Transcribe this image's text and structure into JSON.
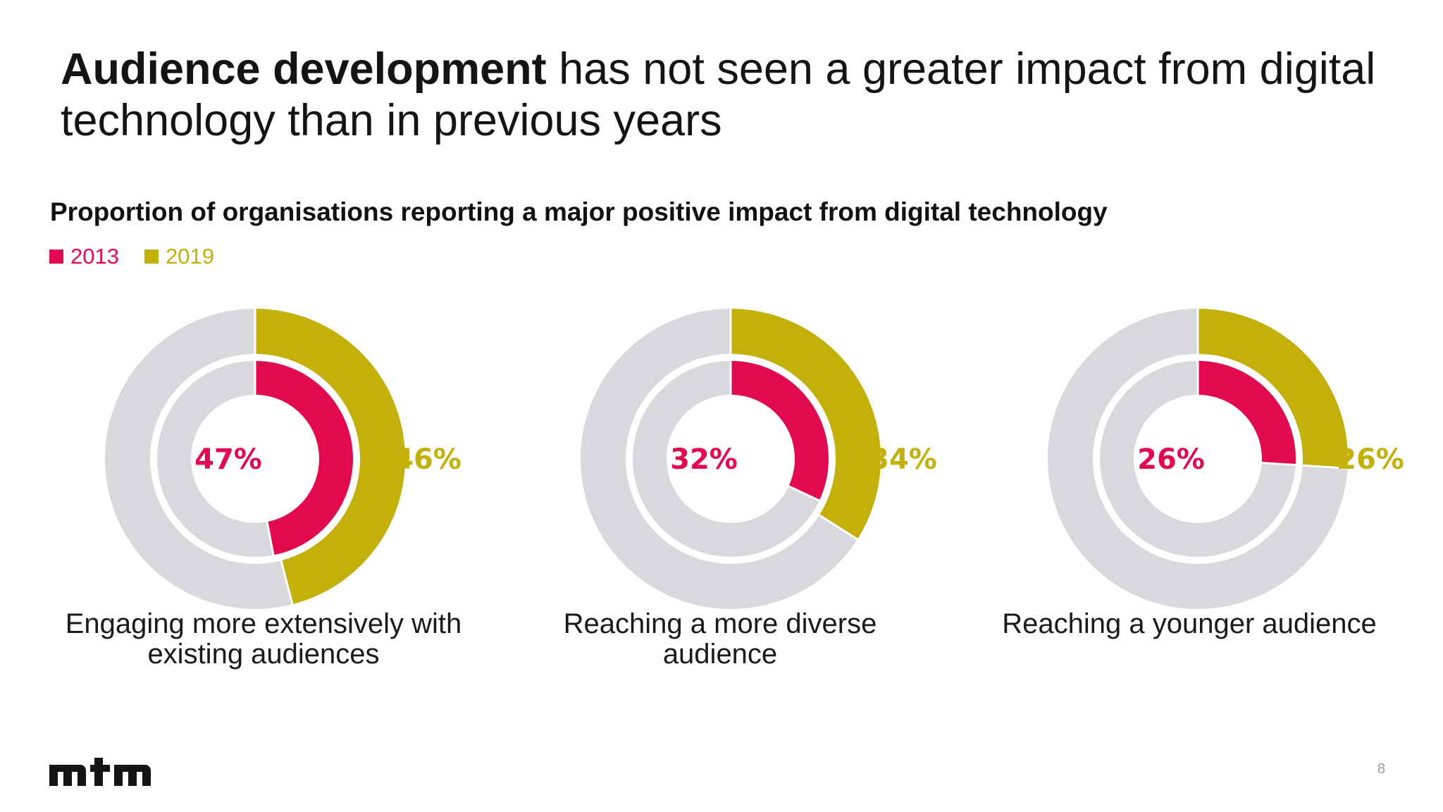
{
  "title": {
    "bold_part": "Audience development",
    "rest_part": " has not seen a greater impact from digital technology than in previous years"
  },
  "colors": {
    "series_2013": "#e3094f",
    "series_2019": "#c4b00a",
    "track": "#d9d8dc"
  },
  "chart_data": {
    "type": "pie",
    "subtype": "nested-donut",
    "title": "Proportion of organisations reporting a major positive impact from digital technology",
    "legend": {
      "placement": "top-left",
      "entries": [
        "2013",
        "2019"
      ]
    },
    "unit": "%",
    "series": [
      {
        "name": "2013",
        "ring": "inner",
        "color": "#e3094f",
        "values": [
          47,
          32,
          26
        ]
      },
      {
        "name": "2019",
        "ring": "outer",
        "color": "#c4b00a",
        "values": [
          46,
          34,
          26
        ]
      }
    ],
    "categories": [
      {
        "label_lines": [
          "Engaging more extensively with",
          "existing audiences"
        ],
        "value_2013": 47,
        "value_2019": 46,
        "label_2013": "47%",
        "label_2019": "46%"
      },
      {
        "label_lines": [
          "Reaching a more diverse",
          "audience"
        ],
        "value_2013": 32,
        "value_2019": 34,
        "label_2013": "32%",
        "label_2019": "34%"
      },
      {
        "label_lines": [
          "Reaching a younger audience"
        ],
        "value_2013": 26,
        "value_2019": 26,
        "label_2013": "26%",
        "label_2019": "26%"
      }
    ]
  },
  "footer": {
    "logo_text": "mtm",
    "page_number": "8"
  }
}
